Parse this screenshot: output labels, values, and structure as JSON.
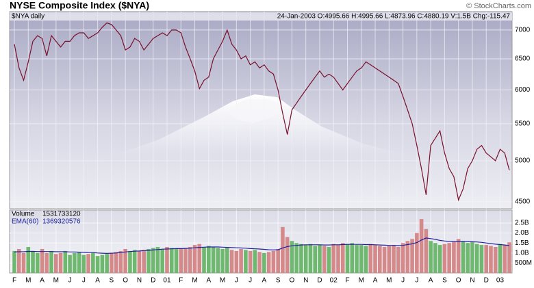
{
  "chart_data": [
    {
      "type": "line",
      "title": "NYSE Composite Index ($NYA)",
      "credit": "© StockCharts.com",
      "subtitle": "$NYA daily",
      "quote": "24-Jan-2003 O:4995.66 H:4995.66 L:4873.96 C:4880.19 V:1.5B Chg:-115.47",
      "log_scale": true,
      "grid": true,
      "color": "#7a0f2a",
      "ylim": [
        4420,
        7340
      ],
      "yticks": [
        4500,
        5000,
        5500,
        6000,
        6500,
        7000
      ],
      "values": [
        6750,
        6350,
        6150,
        6450,
        6800,
        6900,
        6850,
        6550,
        6900,
        6800,
        6700,
        6800,
        6800,
        6900,
        6950,
        6950,
        6850,
        6900,
        6950,
        7050,
        7130,
        7100,
        7000,
        6900,
        6650,
        6700,
        6850,
        6800,
        6650,
        6750,
        6850,
        6900,
        6950,
        6900,
        7000,
        7000,
        6950,
        6700,
        6500,
        6300,
        6020,
        6150,
        6200,
        6500,
        6650,
        6800,
        7000,
        6750,
        6650,
        6500,
        6550,
        6400,
        6450,
        6350,
        6400,
        6300,
        6250,
        6000,
        5650,
        5350,
        5700,
        5800,
        5900,
        6000,
        6100,
        6200,
        6300,
        6200,
        6250,
        6200,
        6100,
        6000,
        6100,
        6200,
        6300,
        6350,
        6450,
        6400,
        6350,
        6300,
        6250,
        6200,
        6150,
        6100,
        5900,
        5700,
        5500,
        5200,
        4900,
        4580,
        5200,
        5300,
        5400,
        5100,
        4900,
        4800,
        4520,
        4650,
        4900,
        5000,
        5150,
        5200,
        5100,
        5050,
        5000,
        5150,
        5100,
        4880.19
      ]
    },
    {
      "type": "bar",
      "grid": true,
      "categories": [
        "F",
        null,
        null,
        "M",
        null,
        null,
        "A",
        null,
        null,
        "M",
        null,
        null,
        "J",
        null,
        null,
        "J",
        null,
        null,
        "A",
        null,
        null,
        "S",
        null,
        null,
        "O",
        null,
        null,
        "N",
        null,
        null,
        "D",
        null,
        null,
        "01",
        null,
        null,
        "F",
        null,
        null,
        "M",
        null,
        null,
        "A",
        null,
        null,
        "M",
        null,
        null,
        "J",
        null,
        null,
        "J",
        null,
        null,
        "A",
        null,
        null,
        "S",
        null,
        null,
        "O",
        null,
        null,
        "N",
        null,
        null,
        "D",
        null,
        null,
        "02",
        null,
        null,
        "F",
        null,
        null,
        "M",
        null,
        null,
        "A",
        null,
        null,
        "M",
        null,
        null,
        "J",
        null,
        null,
        "J",
        null,
        null,
        "A",
        null,
        null,
        "S",
        null,
        null,
        "O",
        null,
        null,
        "N",
        null,
        null,
        "D",
        null,
        null,
        "03",
        null,
        null
      ],
      "ylim": [
        0,
        3150000000.0
      ],
      "yticks": [
        {
          "value": 500000000.0,
          "label": "500M"
        },
        {
          "value": 1000000000.0,
          "label": "1.0B"
        },
        {
          "value": 1500000000.0,
          "label": "1.5B"
        },
        {
          "value": 2000000000.0,
          "label": "2.0B"
        },
        {
          "value": 2500000000.0,
          "label": "2.5B"
        }
      ],
      "up_color": "#6fb86f",
      "down_color": "#d48a8a",
      "series": [
        {
          "name": "Volume",
          "color": "#2a2a80",
          "values": [
            1100000000.0,
            1200000000.0,
            1000000000.0,
            1300000000.0,
            1100000000.0,
            1000000000.0,
            1200000000.0,
            1000000000.0,
            1100000000.0,
            950000000.0,
            1000000000.0,
            1100000000.0,
            900000000.0,
            1000000000.0,
            1050000000.0,
            900000000.0,
            950000000.0,
            1000000000.0,
            850000000.0,
            900000000.0,
            950000000.0,
            1000000000.0,
            1050000000.0,
            1100000000.0,
            1200000000.0,
            1100000000.0,
            1150000000.0,
            1100000000.0,
            1150000000.0,
            1200000000.0,
            1250000000.0,
            1300000000.0,
            1200000000.0,
            1300000000.0,
            1250000000.0,
            1200000000.0,
            1200000000.0,
            1250000000.0,
            1300000000.0,
            1400000000.0,
            1450000000.0,
            1300000000.0,
            1350000000.0,
            1300000000.0,
            1250000000.0,
            1200000000.0,
            1250000000.0,
            1150000000.0,
            1100000000.0,
            1200000000.0,
            1150000000.0,
            1100000000.0,
            1150000000.0,
            1050000000.0,
            1000000000.0,
            1050000000.0,
            1100000000.0,
            1200000000.0,
            2300000000.0,
            1800000000.0,
            1600000000.0,
            1500000000.0,
            1450000000.0,
            1400000000.0,
            1450000000.0,
            1350000000.0,
            1400000000.0,
            1350000000.0,
            1300000000.0,
            1450000000.0,
            1400000000.0,
            1500000000.0,
            1450000000.0,
            1500000000.0,
            1400000000.0,
            1400000000.0,
            1350000000.0,
            1450000000.0,
            1400000000.0,
            1350000000.0,
            1300000000.0,
            1350000000.0,
            1400000000.0,
            1300000000.0,
            1500000000.0,
            1600000000.0,
            1700000000.0,
            2000000000.0,
            2700000000.0,
            2200000000.0,
            1600000000.0,
            1500000000.0,
            1400000000.0,
            1450000000.0,
            1500000000.0,
            1550000000.0,
            1700000000.0,
            1600000000.0,
            1500000000.0,
            1550000000.0,
            1450000000.0,
            1400000000.0,
            1400000000.0,
            1350000000.0,
            1300000000.0,
            1450000000.0,
            1400000000.0,
            1531733120
          ]
        },
        {
          "name": "EMA(60)",
          "color": "#2020a0",
          "values": [
            1050000000.0,
            1060000000.0,
            1060000000.0,
            1080000000.0,
            1080000000.0,
            1070000000.0,
            1070000000.0,
            1070000000.0,
            1070000000.0,
            1060000000.0,
            1060000000.0,
            1060000000.0,
            1050000000.0,
            1050000000.0,
            1040000000.0,
            1030000000.0,
            1020000000.0,
            1020000000.0,
            1000000000.0,
            990000000.0,
            980000000.0,
            990000000.0,
            1000000000.0,
            1020000000.0,
            1050000000.0,
            1070000000.0,
            1090000000.0,
            1100000000.0,
            1120000000.0,
            1130000000.0,
            1150000000.0,
            1170000000.0,
            1190000000.0,
            1200000000.0,
            1210000000.0,
            1220000000.0,
            1220000000.0,
            1230000000.0,
            1240000000.0,
            1260000000.0,
            1280000000.0,
            1290000000.0,
            1300000000.0,
            1300000000.0,
            1300000000.0,
            1290000000.0,
            1280000000.0,
            1270000000.0,
            1260000000.0,
            1250000000.0,
            1240000000.0,
            1220000000.0,
            1210000000.0,
            1200000000.0,
            1180000000.0,
            1160000000.0,
            1150000000.0,
            1160000000.0,
            1250000000.0,
            1320000000.0,
            1360000000.0,
            1380000000.0,
            1400000000.0,
            1410000000.0,
            1410000000.0,
            1410000000.0,
            1410000000.0,
            1400000000.0,
            1400000000.0,
            1410000000.0,
            1410000000.0,
            1420000000.0,
            1430000000.0,
            1430000000.0,
            1430000000.0,
            1430000000.0,
            1420000000.0,
            1420000000.0,
            1410000000.0,
            1400000000.0,
            1390000000.0,
            1380000000.0,
            1380000000.0,
            1370000000.0,
            1380000000.0,
            1420000000.0,
            1460000000.0,
            1520000000.0,
            1650000000.0,
            1750000000.0,
            1720000000.0,
            1680000000.0,
            1630000000.0,
            1600000000.0,
            1580000000.0,
            1570000000.0,
            1580000000.0,
            1580000000.0,
            1570000000.0,
            1560000000.0,
            1550000000.0,
            1530000000.0,
            1500000000.0,
            1470000000.0,
            1440000000.0,
            1420000000.0,
            1400000000.0,
            1369320576
          ]
        }
      ]
    }
  ]
}
